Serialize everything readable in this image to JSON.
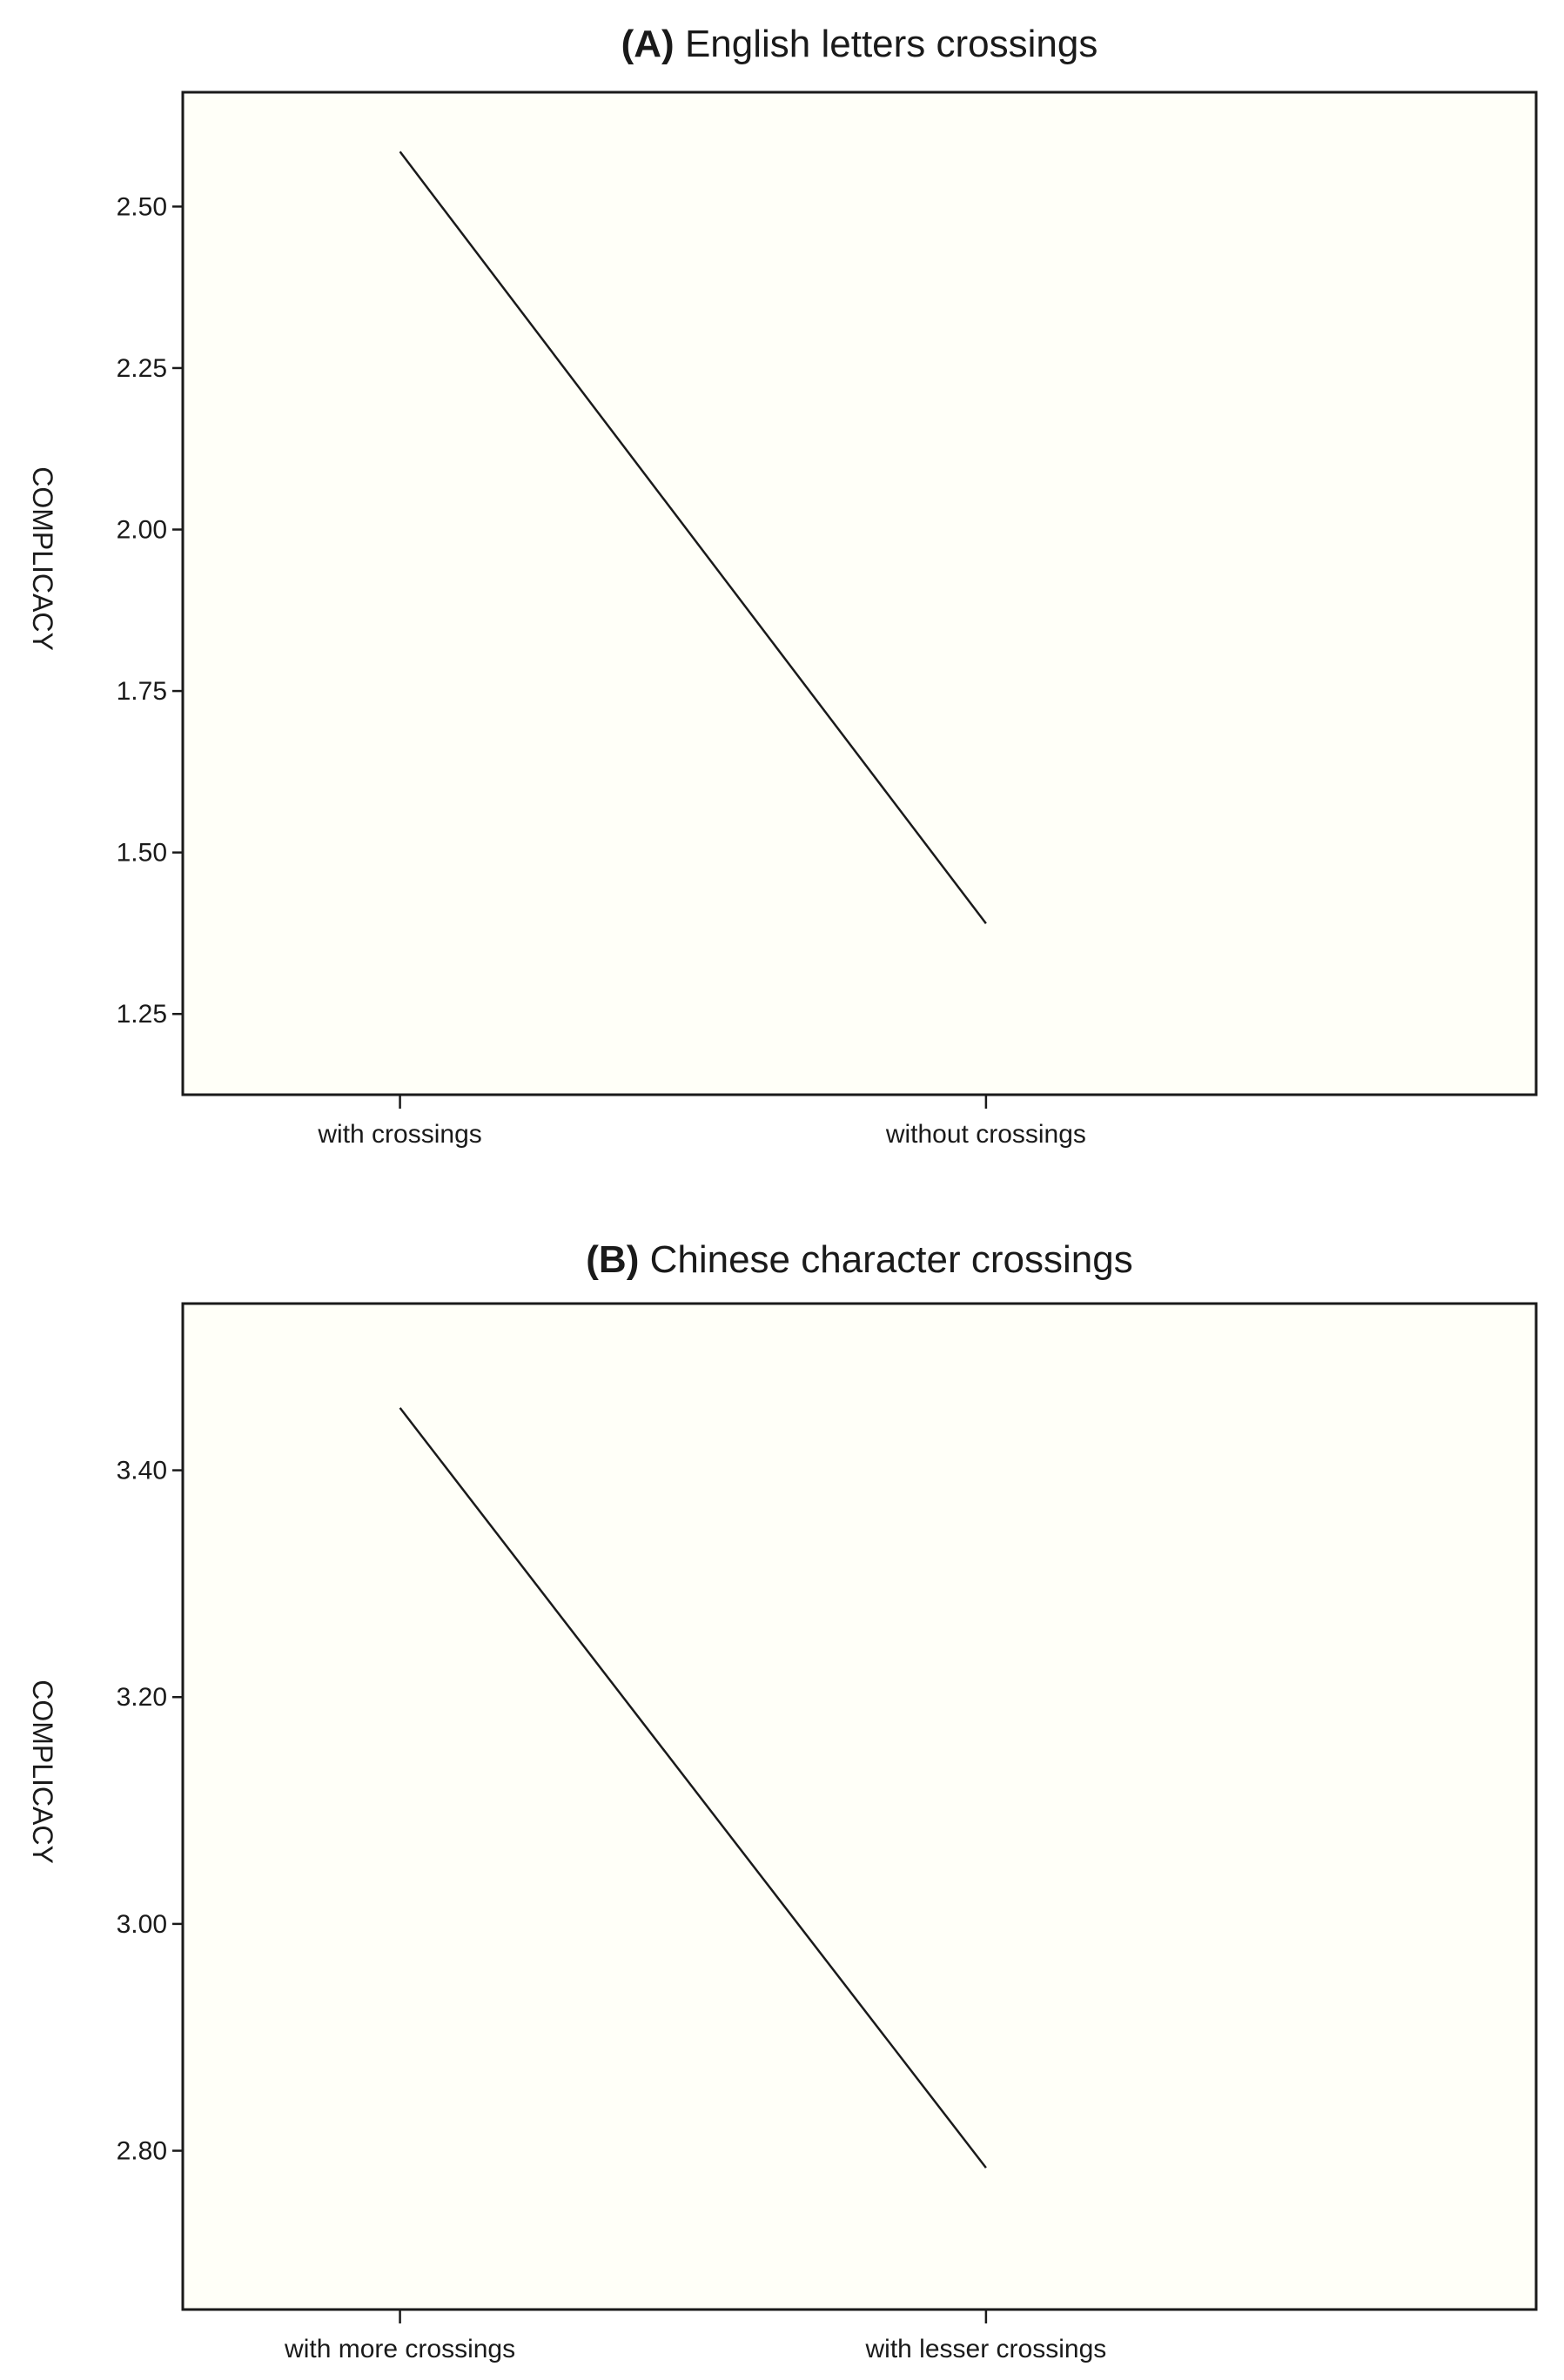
{
  "chart_data": [
    {
      "type": "line",
      "title_prefix": "(A)",
      "title": "English letters crossings",
      "xlabel": "",
      "ylabel": "COMPLICACY",
      "categories": [
        "with crossings",
        "without crossings"
      ],
      "series": [
        {
          "values": [
            2.585,
            1.39
          ]
        }
      ],
      "yticks": [
        "1.25",
        "1.50",
        "1.75",
        "2.00",
        "2.25",
        "2.50"
      ],
      "ytick_values": [
        1.25,
        1.5,
        1.75,
        2.0,
        2.25,
        2.5
      ],
      "ylim": [
        1.125,
        2.677
      ],
      "grid": false,
      "line_color": "#1a1a1a",
      "plot_background": "#fffff8"
    },
    {
      "type": "line",
      "title_prefix": "(B)",
      "title": "Chinese character crossings",
      "xlabel": "",
      "ylabel": "COMPLICACY",
      "categories": [
        "with more crossings",
        "with lesser crossings"
      ],
      "series": [
        {
          "values": [
            3.455,
            2.785
          ]
        }
      ],
      "yticks": [
        "2.80",
        "3.00",
        "3.20",
        "3.40"
      ],
      "ytick_values": [
        2.8,
        3.0,
        3.2,
        3.4
      ],
      "ylim": [
        2.66,
        3.547
      ],
      "grid": false,
      "line_color": "#1a1a1a",
      "plot_background": "#fffff8"
    }
  ]
}
